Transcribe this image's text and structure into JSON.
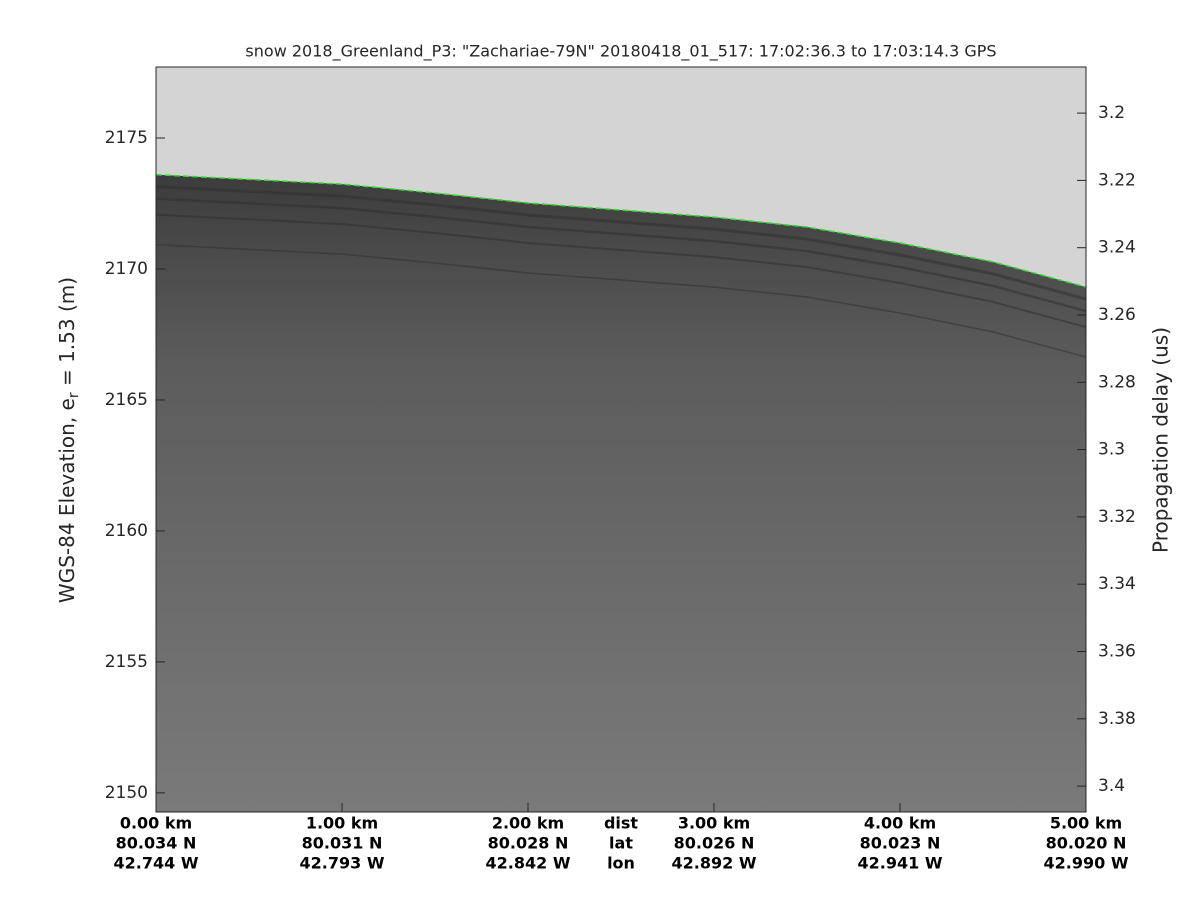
{
  "chart_data": {
    "type": "echogram",
    "title": "snow 2018_Greenland_P3: \"Zachariae-79N\"  20180418_01_517: 17:02:36.3 to 17:03:14.3 GPS",
    "ylabel": {
      "text": "WGS-84 Elevation, e",
      "subscript": "r",
      "suffix": " = 1.53 (m)"
    },
    "y2label": "Propagation delay (us)",
    "xlim": [
      0,
      5
    ],
    "xticks": [
      {
        "value": 0,
        "label": "0.00 km"
      },
      {
        "value": 1,
        "label": "1.00 km"
      },
      {
        "value": 2,
        "label": "2.00 km"
      },
      {
        "value": 3,
        "label": "3.00 km"
      },
      {
        "value": 4,
        "label": "4.00 km"
      },
      {
        "value": 5,
        "label": "5.00 km"
      }
    ],
    "lat_labels": [
      "80.034 N",
      "80.031 N",
      "80.028 N",
      "80.026 N",
      "80.023 N",
      "80.020 N"
    ],
    "lon_labels": [
      "42.744 W",
      "42.793 W",
      "42.842 W",
      "42.892 W",
      "42.941 W",
      "42.990 W"
    ],
    "row_labels": [
      "dist",
      "lat",
      "lon"
    ],
    "ylim": [
      2149.27,
      2177.71
    ],
    "yticks": [
      2150,
      2155,
      2160,
      2165,
      2170,
      2175
    ],
    "y2lim": [
      3.4077,
      3.1863
    ],
    "y2ticks": [
      3.2,
      3.22,
      3.24,
      3.26,
      3.28,
      3.3,
      3.32,
      3.34,
      3.36,
      3.38,
      3.4
    ],
    "series": [
      {
        "name": "surface",
        "color": "#33dd33",
        "x": [
          0,
          0.5,
          1,
          1.5,
          2,
          2.5,
          3,
          3.5,
          4,
          4.5,
          5
        ],
        "values": [
          2173.6,
          2173.42,
          2173.24,
          2172.9,
          2172.52,
          2172.25,
          2171.98,
          2171.6,
          2170.99,
          2170.27,
          2169.31
        ]
      }
    ]
  }
}
